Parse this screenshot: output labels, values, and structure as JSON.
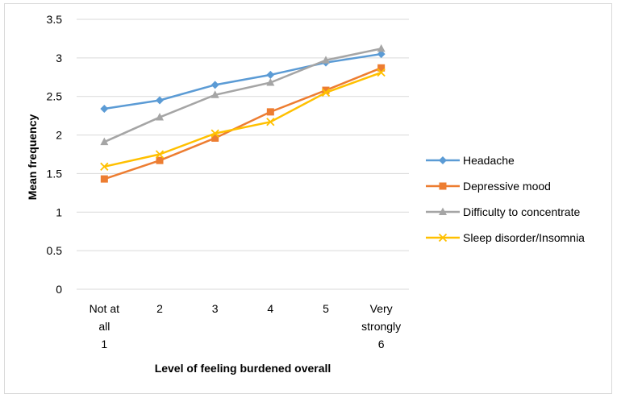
{
  "chart_data": {
    "type": "line",
    "title": "",
    "xlabel": "Level of feeling burdened overall",
    "ylabel": "Mean frequency",
    "ylim": [
      0,
      3.5
    ],
    "yticks": [
      "0",
      "0.5",
      "1",
      "1.5",
      "2",
      "2.5",
      "3",
      "3.5"
    ],
    "grid": "horizontal",
    "legend_position": "right",
    "categories": [
      [
        "Not at",
        "all",
        "1"
      ],
      [
        "2"
      ],
      [
        "3"
      ],
      [
        "4"
      ],
      [
        "5"
      ],
      [
        "Very",
        "strongly",
        "6"
      ]
    ],
    "series": [
      {
        "name": "Headache",
        "color": "#5b9bd5",
        "marker": "diamond",
        "values": [
          2.34,
          2.45,
          2.65,
          2.78,
          2.94,
          3.05
        ]
      },
      {
        "name": "Depressive mood",
        "color": "#ed7d31",
        "marker": "square",
        "values": [
          1.43,
          1.67,
          1.96,
          2.3,
          2.58,
          2.87
        ]
      },
      {
        "name": "Difficulty to concentrate",
        "color": "#a5a5a5",
        "marker": "triangle",
        "values": [
          1.91,
          2.23,
          2.52,
          2.68,
          2.97,
          3.12
        ]
      },
      {
        "name": "Sleep disorder/Insomnia",
        "color": "#ffc000",
        "marker": "x",
        "values": [
          1.59,
          1.75,
          2.02,
          2.17,
          2.55,
          2.81
        ]
      }
    ]
  }
}
